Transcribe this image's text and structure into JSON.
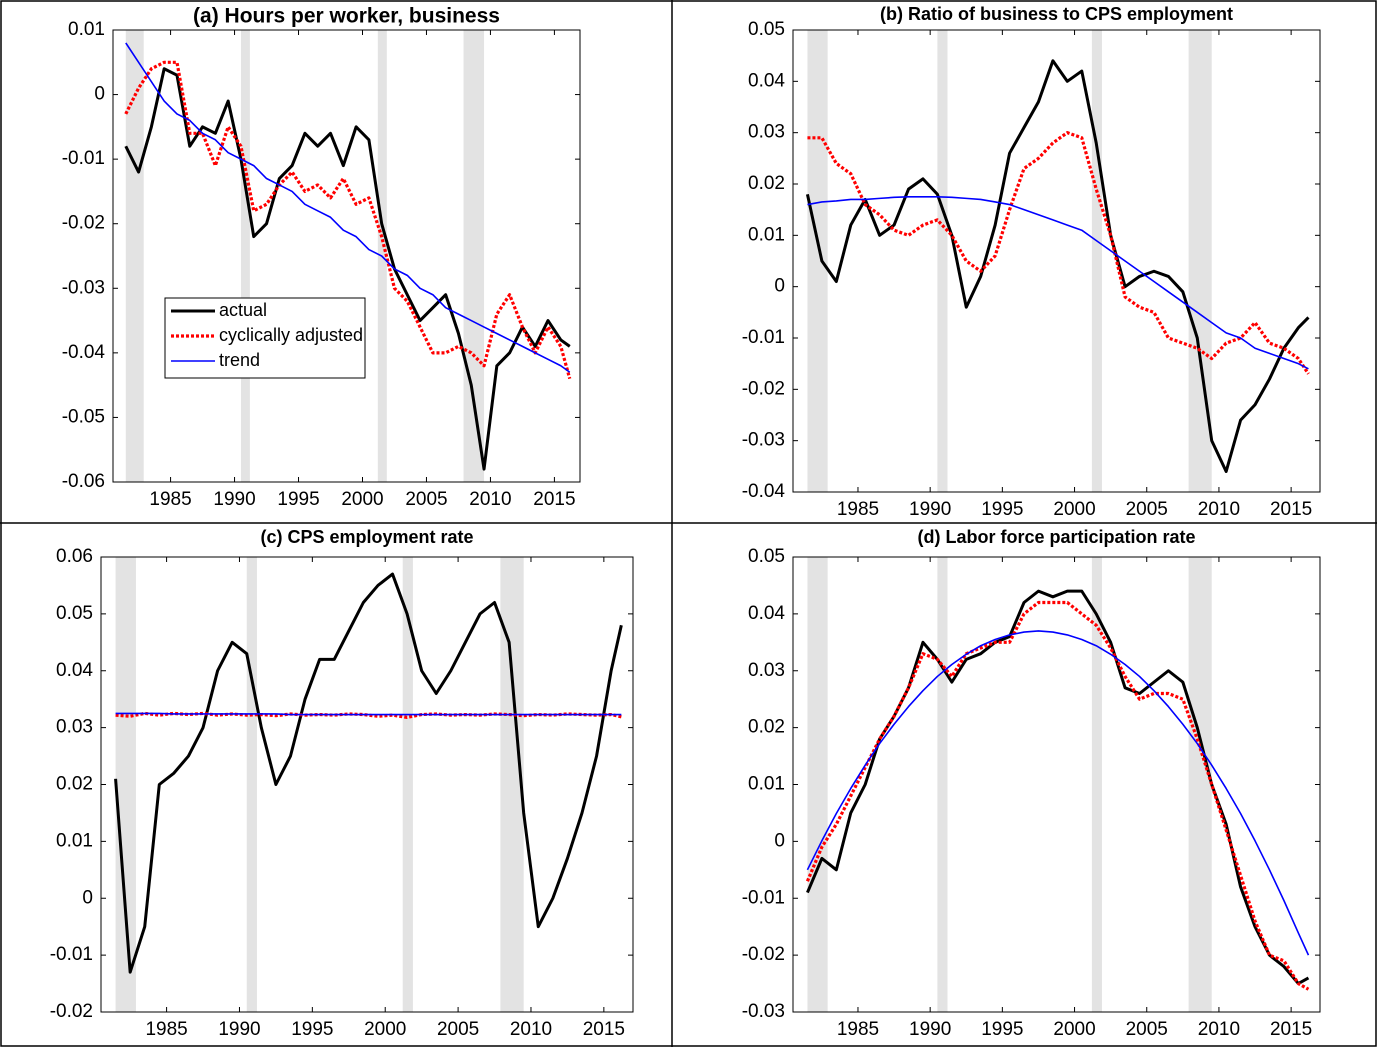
{
  "chart_data": [
    {
      "type": "line",
      "title": "(a) Hours per worker, business",
      "x": [
        1981.5,
        1982.5,
        1983.5,
        1984.5,
        1985.5,
        1986.5,
        1987.5,
        1988.5,
        1989.5,
        1990.5,
        1991.5,
        1992.5,
        1993.5,
        1994.5,
        1995.5,
        1996.5,
        1997.5,
        1998.5,
        1999.5,
        2000.5,
        2001.5,
        2002.5,
        2003.5,
        2004.5,
        2005.5,
        2006.5,
        2007.5,
        2008.5,
        2009.5,
        2010.5,
        2011.5,
        2012.5,
        2013.5,
        2014.5,
        2015.5,
        2016.2
      ],
      "series": [
        {
          "name": "actual",
          "color": "#000000",
          "line_style": "solid",
          "values": [
            -0.008,
            -0.012,
            -0.005,
            0.004,
            0.003,
            -0.008,
            -0.005,
            -0.006,
            -0.001,
            -0.01,
            -0.022,
            -0.02,
            -0.013,
            -0.011,
            -0.006,
            -0.008,
            -0.006,
            -0.011,
            -0.005,
            -0.007,
            -0.02,
            -0.027,
            -0.031,
            -0.035,
            -0.033,
            -0.031,
            -0.037,
            -0.045,
            -0.058,
            -0.042,
            -0.04,
            -0.036,
            -0.039,
            -0.035,
            -0.038,
            -0.039
          ]
        },
        {
          "name": "cyclically adjusted",
          "color": "#ff0000",
          "line_style": "dotted",
          "values": [
            -0.003,
            0.001,
            0.004,
            0.005,
            0.005,
            -0.006,
            -0.006,
            -0.011,
            -0.005,
            -0.008,
            -0.018,
            -0.017,
            -0.014,
            -0.012,
            -0.015,
            -0.014,
            -0.016,
            -0.013,
            -0.017,
            -0.016,
            -0.022,
            -0.03,
            -0.032,
            -0.036,
            -0.04,
            -0.04,
            -0.039,
            -0.04,
            -0.042,
            -0.034,
            -0.031,
            -0.036,
            -0.04,
            -0.036,
            -0.039,
            -0.044
          ]
        },
        {
          "name": "trend",
          "color": "#0000ff",
          "line_style": "thin",
          "values": [
            0.008,
            0.005,
            0.002,
            -0.001,
            -0.003,
            -0.004,
            -0.006,
            -0.007,
            -0.009,
            -0.01,
            -0.011,
            -0.013,
            -0.014,
            -0.015,
            -0.017,
            -0.018,
            -0.019,
            -0.021,
            -0.022,
            -0.024,
            -0.025,
            -0.027,
            -0.028,
            -0.03,
            -0.031,
            -0.033,
            -0.034,
            -0.035,
            -0.036,
            -0.037,
            -0.038,
            -0.039,
            -0.04,
            -0.041,
            -0.042,
            -0.043
          ]
        }
      ],
      "shaded": [
        [
          1981.5,
          1982.9
        ],
        [
          1990.5,
          1991.2
        ],
        [
          2001.2,
          2001.9
        ],
        [
          2007.9,
          2009.5
        ]
      ],
      "xlim": [
        1980.5,
        2017
      ],
      "xticks": [
        1985,
        1990,
        1995,
        2000,
        2005,
        2010,
        2015
      ],
      "ylim": [
        -0.06,
        0.01
      ],
      "yticks": [
        -0.06,
        -0.05,
        -0.04,
        -0.03,
        -0.02,
        -0.01,
        0,
        0.01
      ],
      "legend": "center-left"
    },
    {
      "type": "line",
      "title": "(b) Ratio of business to CPS employment",
      "x": [
        1981.5,
        1982.5,
        1983.5,
        1984.5,
        1985.5,
        1986.5,
        1987.5,
        1988.5,
        1989.5,
        1990.5,
        1991.5,
        1992.5,
        1993.5,
        1994.5,
        1995.5,
        1996.5,
        1997.5,
        1998.5,
        1999.5,
        2000.5,
        2001.5,
        2002.5,
        2003.5,
        2004.5,
        2005.5,
        2006.5,
        2007.5,
        2008.5,
        2009.5,
        2010.5,
        2011.5,
        2012.5,
        2013.5,
        2014.5,
        2015.5,
        2016.2
      ],
      "series": [
        {
          "color": "#000000",
          "line_style": "solid",
          "values": [
            0.018,
            0.005,
            0.001,
            0.012,
            0.017,
            0.01,
            0.012,
            0.019,
            0.021,
            0.018,
            0.01,
            -0.004,
            0.002,
            0.012,
            0.026,
            0.031,
            0.036,
            0.044,
            0.04,
            0.042,
            0.028,
            0.01,
            0,
            0.002,
            0.003,
            0.002,
            -0.001,
            -0.01,
            -0.03,
            -0.036,
            -0.026,
            -0.023,
            -0.018,
            -0.012,
            -0.008,
            -0.006
          ]
        },
        {
          "color": "#ff0000",
          "line_style": "dotted",
          "values": [
            0.029,
            0.029,
            0.024,
            0.022,
            0.016,
            0.014,
            0.011,
            0.01,
            0.012,
            0.013,
            0.01,
            0.005,
            0.003,
            0.006,
            0.015,
            0.023,
            0.025,
            0.028,
            0.03,
            0.029,
            0.019,
            0.01,
            -0.002,
            -0.004,
            -0.005,
            -0.01,
            -0.011,
            -0.012,
            -0.014,
            -0.011,
            -0.01,
            -0.007,
            -0.011,
            -0.012,
            -0.014,
            -0.017
          ]
        },
        {
          "color": "#0000ff",
          "line_style": "thin",
          "values": [
            0.016,
            0.0165,
            0.0167,
            0.017,
            0.017,
            0.0172,
            0.0174,
            0.0175,
            0.0175,
            0.0175,
            0.0174,
            0.0172,
            0.017,
            0.0165,
            0.016,
            0.015,
            0.014,
            0.013,
            0.012,
            0.011,
            0.009,
            0.007,
            0.005,
            0.003,
            0.001,
            -0.001,
            -0.003,
            -0.005,
            -0.007,
            -0.009,
            -0.01,
            -0.012,
            -0.013,
            -0.014,
            -0.015,
            -0.016
          ]
        }
      ],
      "shaded": [
        [
          1981.5,
          1982.9
        ],
        [
          1990.5,
          1991.2
        ],
        [
          2001.2,
          2001.9
        ],
        [
          2007.9,
          2009.5
        ]
      ],
      "xlim": [
        1980.5,
        2017
      ],
      "xticks": [
        1985,
        1990,
        1995,
        2000,
        2005,
        2010,
        2015
      ],
      "ylim": [
        -0.04,
        0.05
      ],
      "yticks": [
        -0.04,
        -0.03,
        -0.02,
        -0.01,
        0,
        0.01,
        0.02,
        0.03,
        0.04,
        0.05
      ]
    },
    {
      "type": "line",
      "title": "(c) CPS employment rate",
      "x": [
        1981.5,
        1982.5,
        1983.5,
        1984.5,
        1985.5,
        1986.5,
        1987.5,
        1988.5,
        1989.5,
        1990.5,
        1991.5,
        1992.5,
        1993.5,
        1994.5,
        1995.5,
        1996.5,
        1997.5,
        1998.5,
        1999.5,
        2000.5,
        2001.5,
        2002.5,
        2003.5,
        2004.5,
        2005.5,
        2006.5,
        2007.5,
        2008.5,
        2009.5,
        2010.5,
        2011.5,
        2012.5,
        2013.5,
        2014.5,
        2015.5,
        2016.2
      ],
      "series": [
        {
          "color": "#000000",
          "line_style": "solid",
          "values": [
            0.021,
            -0.013,
            -0.005,
            0.02,
            0.022,
            0.025,
            0.03,
            0.04,
            0.045,
            0.043,
            0.03,
            0.02,
            0.025,
            0.035,
            0.042,
            0.042,
            0.047,
            0.052,
            0.055,
            0.057,
            0.05,
            0.04,
            0.036,
            0.04,
            0.045,
            0.05,
            0.052,
            0.045,
            0.015,
            -0.005,
            0,
            0.007,
            0.015,
            0.025,
            0.04,
            0.048
          ]
        },
        {
          "color": "#ff0000",
          "line_style": "dotted",
          "values": [
            0.0322,
            0.032,
            0.0325,
            0.0322,
            0.0325,
            0.0323,
            0.0325,
            0.0322,
            0.0324,
            0.0322,
            0.0323,
            0.0321,
            0.0324,
            0.0322,
            0.0323,
            0.0322,
            0.0324,
            0.0323,
            0.032,
            0.0322,
            0.0318,
            0.0323,
            0.0324,
            0.0322,
            0.0323,
            0.0322,
            0.0324,
            0.0323,
            0.0321,
            0.0323,
            0.0322,
            0.0324,
            0.0323,
            0.0322,
            0.0323,
            0.0319
          ]
        },
        {
          "color": "#0000ff",
          "line_style": "thin",
          "values": [
            0.0325,
            0.0325,
            0.0325,
            0.0325,
            0.0324,
            0.0324,
            0.0324,
            0.0324,
            0.0324,
            0.0324,
            0.0324,
            0.0324,
            0.0323,
            0.0323,
            0.0323,
            0.0323,
            0.0323,
            0.0323,
            0.0323,
            0.0323,
            0.0323,
            0.0323,
            0.0323,
            0.0323,
            0.0323,
            0.0323,
            0.0323,
            0.0323,
            0.0323,
            0.0323,
            0.0323,
            0.0323,
            0.0323,
            0.0323,
            0.0323,
            0.0323
          ]
        }
      ],
      "shaded": [
        [
          1981.5,
          1982.9
        ],
        [
          1990.5,
          1991.2
        ],
        [
          2001.2,
          2001.9
        ],
        [
          2007.9,
          2009.5
        ]
      ],
      "xlim": [
        1980.5,
        2017
      ],
      "xticks": [
        1985,
        1990,
        1995,
        2000,
        2005,
        2010,
        2015
      ],
      "ylim": [
        -0.02,
        0.06
      ],
      "yticks": [
        -0.02,
        -0.01,
        0,
        0.01,
        0.02,
        0.03,
        0.04,
        0.05,
        0.06
      ]
    },
    {
      "type": "line",
      "title": "(d) Labor force participation rate",
      "x": [
        1981.5,
        1982.5,
        1983.5,
        1984.5,
        1985.5,
        1986.5,
        1987.5,
        1988.5,
        1989.5,
        1990.5,
        1991.5,
        1992.5,
        1993.5,
        1994.5,
        1995.5,
        1996.5,
        1997.5,
        1998.5,
        1999.5,
        2000.5,
        2001.5,
        2002.5,
        2003.5,
        2004.5,
        2005.5,
        2006.5,
        2007.5,
        2008.5,
        2009.5,
        2010.5,
        2011.5,
        2012.5,
        2013.5,
        2014.5,
        2015.5,
        2016.2
      ],
      "series": [
        {
          "color": "#000000",
          "line_style": "solid",
          "values": [
            -0.009,
            -0.003,
            -0.005,
            0.005,
            0.01,
            0.018,
            0.022,
            0.027,
            0.035,
            0.032,
            0.028,
            0.032,
            0.033,
            0.035,
            0.036,
            0.042,
            0.044,
            0.043,
            0.044,
            0.044,
            0.04,
            0.035,
            0.027,
            0.026,
            0.028,
            0.03,
            0.028,
            0.02,
            0.01,
            0.003,
            -0.008,
            -0.015,
            -0.02,
            -0.022,
            -0.025,
            -0.024
          ]
        },
        {
          "color": "#ff0000",
          "line_style": "dotted",
          "values": [
            -0.007,
            -0.001,
            0.003,
            0.008,
            0.013,
            0.018,
            0.022,
            0.027,
            0.033,
            0.032,
            0.029,
            0.033,
            0.034,
            0.035,
            0.035,
            0.04,
            0.042,
            0.042,
            0.042,
            0.04,
            0.038,
            0.034,
            0.029,
            0.025,
            0.026,
            0.026,
            0.025,
            0.018,
            0.01,
            0.002,
            -0.006,
            -0.014,
            -0.02,
            -0.021,
            -0.025,
            -0.026
          ]
        },
        {
          "color": "#0000ff",
          "line_style": "thin",
          "values": [
            -0.005,
            0.0001,
            0.0049,
            0.0093,
            0.0134,
            0.0172,
            0.0206,
            0.0237,
            0.0265,
            0.029,
            0.0311,
            0.0329,
            0.0344,
            0.0355,
            0.0363,
            0.0368,
            0.037,
            0.0368,
            0.0363,
            0.0355,
            0.0344,
            0.0329,
            0.0311,
            0.029,
            0.0265,
            0.0237,
            0.0206,
            0.0172,
            0.0134,
            0.0093,
            0.0049,
            0.0001,
            -0.005,
            -0.0104,
            -0.0161,
            -0.02
          ]
        }
      ],
      "shaded": [
        [
          1981.5,
          1982.9
        ],
        [
          1990.5,
          1991.2
        ],
        [
          2001.2,
          2001.9
        ],
        [
          2007.9,
          2009.5
        ]
      ],
      "xlim": [
        1980.5,
        2017
      ],
      "xticks": [
        1985,
        1990,
        1995,
        2000,
        2005,
        2010,
        2015
      ],
      "ylim": [
        -0.03,
        0.05
      ],
      "yticks": [
        -0.03,
        -0.02,
        -0.01,
        0,
        0.01,
        0.02,
        0.03,
        0.04,
        0.05
      ]
    }
  ]
}
